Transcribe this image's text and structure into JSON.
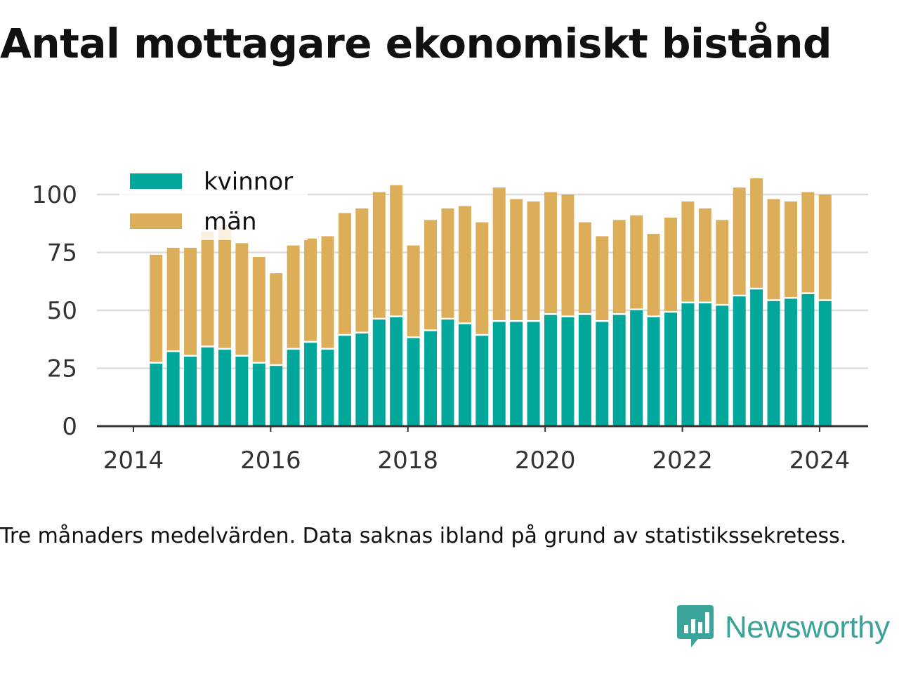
{
  "title": "Antal mottagare ekonomiskt bistånd",
  "note": "Tre månaders medelvärden. Data saknas ibland på grund av statistikssekretess.",
  "brand": {
    "name": "Newsworthy",
    "logo_icon": "bar-chart-speech-bubble-icon"
  },
  "colors": {
    "kvinnor": "#00a79a",
    "man": "#dcae5a",
    "grid": "#dddddd",
    "axis": "#333333"
  },
  "chart_data": {
    "type": "bar",
    "stacked": true,
    "x": [
      2014.33,
      2014.58,
      2014.83,
      2015.08,
      2015.33,
      2015.58,
      2015.83,
      2016.08,
      2016.33,
      2016.58,
      2016.83,
      2017.08,
      2017.33,
      2017.58,
      2017.83,
      2018.08,
      2018.33,
      2018.58,
      2018.83,
      2019.08,
      2019.33,
      2019.58,
      2019.83,
      2020.08,
      2020.33,
      2020.58,
      2020.83,
      2021.08,
      2021.33,
      2021.58,
      2021.83,
      2022.08,
      2022.33,
      2022.58,
      2022.83,
      2023.08,
      2023.33,
      2023.58,
      2023.83,
      2024.08
    ],
    "series": [
      {
        "name": "kvinnor",
        "values": [
          27,
          32,
          30,
          34,
          33,
          30,
          27,
          26,
          33,
          36,
          33,
          39,
          40,
          46,
          47,
          38,
          41,
          46,
          44,
          39,
          45,
          45,
          45,
          48,
          47,
          48,
          45,
          48,
          50,
          47,
          49,
          53,
          53,
          52,
          56,
          59,
          54,
          55,
          57,
          54
        ]
      },
      {
        "name": "män",
        "values": [
          47,
          45,
          47,
          50,
          53,
          49,
          46,
          40,
          45,
          45,
          49,
          53,
          54,
          55,
          57,
          40,
          48,
          48,
          51,
          49,
          58,
          53,
          52,
          53,
          53,
          40,
          37,
          41,
          41,
          36,
          41,
          44,
          41,
          37,
          47,
          48,
          44,
          42,
          44,
          46
        ]
      }
    ],
    "legend": "top-left",
    "ylim": [
      0,
      110
    ],
    "yticks": [
      0,
      25,
      50,
      75,
      100
    ],
    "xticks": [
      "2014",
      "2016",
      "2018",
      "2020",
      "2022",
      "2024"
    ],
    "xtick_values": [
      2014,
      2016,
      2018,
      2020,
      2022,
      2024
    ],
    "grid": "horizontal"
  }
}
